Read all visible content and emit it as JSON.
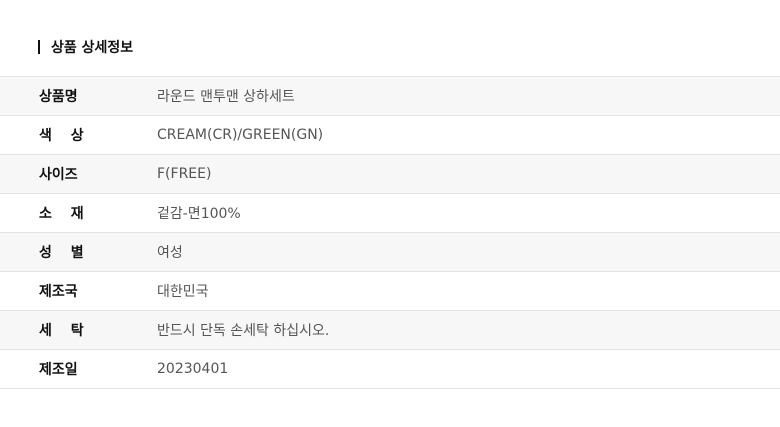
{
  "section": {
    "title": "상품 상세정보"
  },
  "rows": [
    {
      "label": "상품명",
      "value": "라운드 맨투맨 상하세트"
    },
    {
      "label": "색 상",
      "value": "CREAM(CR)/GREEN(GN)"
    },
    {
      "label": "사이즈",
      "value": "F(FREE)"
    },
    {
      "label": "소 재",
      "value": "겉감-면100%"
    },
    {
      "label": "성 별",
      "value": "여성"
    },
    {
      "label": "제조국",
      "value": "대한민국"
    },
    {
      "label": "세 탁",
      "value": "반드시 단독 손세탁 하십시오."
    },
    {
      "label": "제조일",
      "value": "20230401"
    }
  ]
}
